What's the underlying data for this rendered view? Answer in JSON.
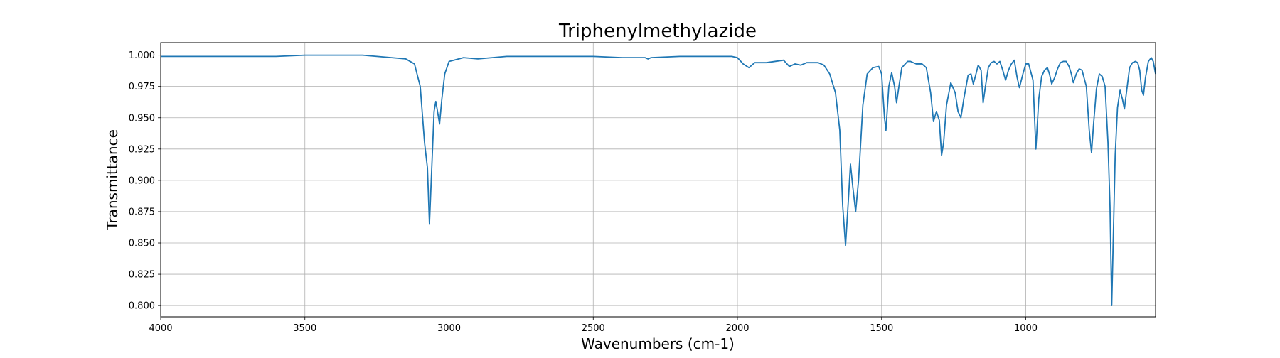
{
  "chart_data": {
    "type": "line",
    "title": "Triphenylmethylazide",
    "xlabel": "Wavenumbers (cm-1)",
    "ylabel": "Transmittance",
    "xlim": [
      4000,
      550
    ],
    "ylim": [
      0.791,
      1.01
    ],
    "x_reversed": true,
    "grid": true,
    "x_ticks": [
      4000,
      3500,
      3000,
      2500,
      2000,
      1500,
      1000
    ],
    "x_tick_labels": [
      "4000",
      "3500",
      "3000",
      "2500",
      "2000",
      "1500",
      "1000"
    ],
    "y_ticks": [
      0.8,
      0.825,
      0.85,
      0.875,
      0.9,
      0.925,
      0.95,
      0.975,
      1.0
    ],
    "y_tick_labels": [
      "0.800",
      "0.825",
      "0.850",
      "0.875",
      "0.900",
      "0.925",
      "0.950",
      "0.975",
      "1.000"
    ],
    "series": [
      {
        "color": "#1f77b4",
        "points": [
          [
            4000,
            0.999
          ],
          [
            3900,
            0.999
          ],
          [
            3800,
            0.999
          ],
          [
            3700,
            0.999
          ],
          [
            3600,
            0.999
          ],
          [
            3500,
            1.0
          ],
          [
            3400,
            1.0
          ],
          [
            3300,
            1.0
          ],
          [
            3200,
            0.998
          ],
          [
            3150,
            0.997
          ],
          [
            3120,
            0.993
          ],
          [
            3100,
            0.975
          ],
          [
            3085,
            0.93
          ],
          [
            3075,
            0.91
          ],
          [
            3068,
            0.865
          ],
          [
            3060,
            0.91
          ],
          [
            3052,
            0.955
          ],
          [
            3046,
            0.963
          ],
          [
            3040,
            0.955
          ],
          [
            3033,
            0.945
          ],
          [
            3025,
            0.965
          ],
          [
            3015,
            0.985
          ],
          [
            3000,
            0.995
          ],
          [
            2950,
            0.998
          ],
          [
            2900,
            0.997
          ],
          [
            2850,
            0.998
          ],
          [
            2800,
            0.999
          ],
          [
            2700,
            0.999
          ],
          [
            2600,
            0.999
          ],
          [
            2500,
            0.999
          ],
          [
            2400,
            0.998
          ],
          [
            2320,
            0.998
          ],
          [
            2310,
            0.997
          ],
          [
            2300,
            0.998
          ],
          [
            2200,
            0.999
          ],
          [
            2100,
            0.999
          ],
          [
            2020,
            0.999
          ],
          [
            2000,
            0.998
          ],
          [
            1980,
            0.993
          ],
          [
            1960,
            0.99
          ],
          [
            1940,
            0.994
          ],
          [
            1900,
            0.994
          ],
          [
            1870,
            0.995
          ],
          [
            1840,
            0.996
          ],
          [
            1820,
            0.991
          ],
          [
            1800,
            0.993
          ],
          [
            1780,
            0.992
          ],
          [
            1760,
            0.994
          ],
          [
            1720,
            0.994
          ],
          [
            1700,
            0.992
          ],
          [
            1680,
            0.985
          ],
          [
            1660,
            0.97
          ],
          [
            1645,
            0.94
          ],
          [
            1635,
            0.88
          ],
          [
            1625,
            0.848
          ],
          [
            1615,
            0.885
          ],
          [
            1608,
            0.913
          ],
          [
            1600,
            0.895
          ],
          [
            1590,
            0.875
          ],
          [
            1580,
            0.9
          ],
          [
            1565,
            0.96
          ],
          [
            1550,
            0.985
          ],
          [
            1530,
            0.99
          ],
          [
            1510,
            0.991
          ],
          [
            1500,
            0.985
          ],
          [
            1490,
            0.95
          ],
          [
            1485,
            0.94
          ],
          [
            1475,
            0.975
          ],
          [
            1465,
            0.986
          ],
          [
            1455,
            0.975
          ],
          [
            1448,
            0.962
          ],
          [
            1440,
            0.975
          ],
          [
            1430,
            0.99
          ],
          [
            1410,
            0.995
          ],
          [
            1400,
            0.995
          ],
          [
            1380,
            0.993
          ],
          [
            1360,
            0.993
          ],
          [
            1345,
            0.99
          ],
          [
            1330,
            0.97
          ],
          [
            1320,
            0.947
          ],
          [
            1310,
            0.955
          ],
          [
            1300,
            0.948
          ],
          [
            1292,
            0.92
          ],
          [
            1285,
            0.93
          ],
          [
            1275,
            0.96
          ],
          [
            1260,
            0.978
          ],
          [
            1245,
            0.97
          ],
          [
            1235,
            0.955
          ],
          [
            1225,
            0.95
          ],
          [
            1215,
            0.965
          ],
          [
            1200,
            0.984
          ],
          [
            1190,
            0.985
          ],
          [
            1182,
            0.977
          ],
          [
            1175,
            0.983
          ],
          [
            1165,
            0.992
          ],
          [
            1155,
            0.988
          ],
          [
            1148,
            0.962
          ],
          [
            1140,
            0.975
          ],
          [
            1130,
            0.99
          ],
          [
            1120,
            0.994
          ],
          [
            1110,
            0.995
          ],
          [
            1100,
            0.993
          ],
          [
            1090,
            0.995
          ],
          [
            1080,
            0.988
          ],
          [
            1070,
            0.98
          ],
          [
            1060,
            0.988
          ],
          [
            1050,
            0.993
          ],
          [
            1040,
            0.996
          ],
          [
            1030,
            0.982
          ],
          [
            1022,
            0.974
          ],
          [
            1010,
            0.985
          ],
          [
            1000,
            0.993
          ],
          [
            990,
            0.993
          ],
          [
            975,
            0.98
          ],
          [
            965,
            0.925
          ],
          [
            955,
            0.965
          ],
          [
            945,
            0.983
          ],
          [
            935,
            0.988
          ],
          [
            925,
            0.99
          ],
          [
            918,
            0.985
          ],
          [
            910,
            0.977
          ],
          [
            900,
            0.982
          ],
          [
            890,
            0.989
          ],
          [
            880,
            0.994
          ],
          [
            870,
            0.995
          ],
          [
            860,
            0.995
          ],
          [
            850,
            0.991
          ],
          [
            842,
            0.985
          ],
          [
            835,
            0.978
          ],
          [
            825,
            0.985
          ],
          [
            815,
            0.989
          ],
          [
            805,
            0.988
          ],
          [
            790,
            0.975
          ],
          [
            780,
            0.94
          ],
          [
            772,
            0.922
          ],
          [
            765,
            0.945
          ],
          [
            755,
            0.973
          ],
          [
            745,
            0.985
          ],
          [
            735,
            0.983
          ],
          [
            725,
            0.975
          ],
          [
            715,
            0.93
          ],
          [
            708,
            0.88
          ],
          [
            702,
            0.8
          ],
          [
            697,
            0.85
          ],
          [
            690,
            0.92
          ],
          [
            682,
            0.958
          ],
          [
            673,
            0.972
          ],
          [
            665,
            0.965
          ],
          [
            658,
            0.957
          ],
          [
            650,
            0.972
          ],
          [
            640,
            0.99
          ],
          [
            630,
            0.994
          ],
          [
            620,
            0.995
          ],
          [
            612,
            0.994
          ],
          [
            605,
            0.988
          ],
          [
            598,
            0.972
          ],
          [
            592,
            0.968
          ],
          [
            585,
            0.982
          ],
          [
            575,
            0.995
          ],
          [
            565,
            0.998
          ],
          [
            558,
            0.995
          ],
          [
            550,
            0.985
          ]
        ]
      }
    ]
  }
}
